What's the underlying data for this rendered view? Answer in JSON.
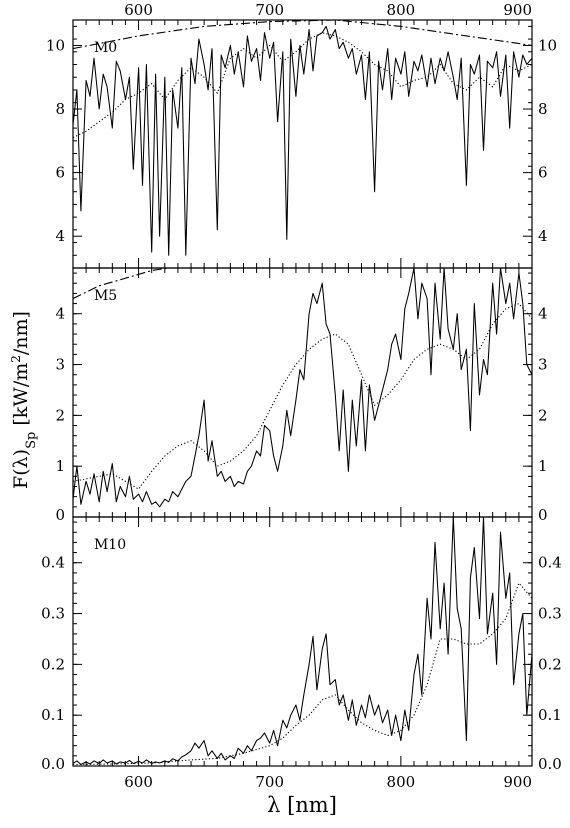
{
  "chart_data": [
    {
      "type": "line",
      "panel": "M0",
      "xlim": [
        550,
        900
      ],
      "ylim": [
        3,
        10.8
      ],
      "x_ticks": [
        600,
        700,
        800,
        900
      ],
      "y_ticks": [
        4,
        6,
        8,
        10
      ],
      "xlabel": "",
      "ylabel": "",
      "annotation": "M0",
      "series": [
        {
          "style": "solid",
          "x": [
            550,
            553,
            556,
            560,
            563,
            566,
            570,
            573,
            576,
            580,
            583,
            586,
            590,
            593,
            596,
            600,
            603,
            606,
            610,
            613,
            616,
            620,
            623,
            626,
            630,
            633,
            636,
            640,
            643,
            646,
            650,
            653,
            656,
            660,
            663,
            666,
            670,
            673,
            676,
            680,
            683,
            686,
            690,
            693,
            696,
            700,
            703,
            706,
            710,
            713,
            716,
            720,
            723,
            726,
            730,
            733,
            736,
            740,
            743,
            746,
            750,
            753,
            756,
            760,
            763,
            766,
            770,
            773,
            776,
            780,
            783,
            786,
            790,
            793,
            796,
            800,
            803,
            806,
            810,
            813,
            816,
            820,
            823,
            826,
            830,
            833,
            836,
            840,
            843,
            846,
            850,
            853,
            856,
            860,
            863,
            866,
            870,
            873,
            876,
            880,
            883,
            886,
            890,
            893,
            896,
            900
          ],
          "y": [
            7.5,
            8.6,
            4.8,
            8.9,
            8.4,
            9.6,
            8.0,
            9.1,
            8.7,
            7.4,
            9.5,
            9.2,
            8.3,
            9.0,
            6.1,
            9.3,
            5.6,
            9.4,
            3.5,
            9.1,
            4.0,
            9.0,
            3.4,
            8.6,
            7.4,
            9.3,
            3.4,
            9.6,
            8.8,
            10.2,
            9.4,
            8.6,
            9.9,
            4.2,
            9.7,
            9.3,
            10.0,
            9.1,
            9.8,
            8.7,
            10.3,
            9.5,
            9.9,
            8.9,
            10.4,
            9.6,
            10.1,
            7.6,
            9.8,
            3.9,
            10.2,
            8.4,
            10.0,
            9.1,
            10.5,
            9.2,
            10.3,
            10.4,
            10.6,
            10.2,
            10.5,
            9.9,
            10.1,
            9.6,
            9.9,
            9.1,
            9.7,
            8.3,
            9.8,
            5.4,
            9.5,
            8.6,
            9.9,
            8.3,
            9.6,
            9.1,
            9.8,
            8.4,
            9.5,
            9.2,
            9.7,
            8.7,
            9.6,
            8.8,
            9.6,
            9.2,
            9.8,
            9.0,
            8.3,
            9.6,
            5.6,
            9.4,
            9.1,
            9.7,
            6.7,
            9.5,
            9.3,
            9.8,
            8.4,
            9.7,
            7.4,
            9.8,
            9.0,
            9.7,
            9.4,
            9.6
          ]
        },
        {
          "style": "dotted",
          "x": [
            550,
            560,
            570,
            580,
            590,
            600,
            610,
            620,
            630,
            640,
            650,
            660,
            670,
            680,
            690,
            700,
            710,
            720,
            730,
            740,
            750,
            760,
            770,
            780,
            790,
            800,
            810,
            820,
            830,
            840,
            850,
            860,
            870,
            880,
            890,
            900
          ],
          "y": [
            7.1,
            7.3,
            7.6,
            7.9,
            8.3,
            8.5,
            8.8,
            8.3,
            8.9,
            9.3,
            9.0,
            8.5,
            9.6,
            9.9,
            9.6,
            10.0,
            9.5,
            9.8,
            10.2,
            10.4,
            10.3,
            10.1,
            9.8,
            9.4,
            9.2,
            8.7,
            8.9,
            9.0,
            9.4,
            8.8,
            8.6,
            9.0,
            8.7,
            9.4,
            9.2,
            9.4
          ]
        },
        {
          "style": "dashdot",
          "x": [
            550,
            600,
            650,
            700,
            750,
            800,
            850,
            900
          ],
          "y": [
            9.9,
            10.3,
            10.6,
            10.75,
            10.8,
            10.6,
            10.3,
            10.0
          ]
        }
      ]
    },
    {
      "type": "line",
      "panel": "M5",
      "xlim": [
        550,
        900
      ],
      "ylim": [
        0,
        4.9
      ],
      "x_ticks": [
        600,
        700,
        800,
        900
      ],
      "y_ticks": [
        0,
        1,
        2,
        3,
        4
      ],
      "xlabel": "",
      "ylabel": "F(λ)_Sp [kW/m²/nm]",
      "annotation": "M5",
      "series": [
        {
          "style": "solid",
          "x": [
            550,
            553,
            556,
            560,
            563,
            566,
            570,
            573,
            576,
            580,
            583,
            586,
            590,
            593,
            596,
            600,
            603,
            606,
            610,
            613,
            616,
            620,
            623,
            626,
            630,
            633,
            636,
            640,
            643,
            646,
            650,
            653,
            656,
            660,
            663,
            666,
            670,
            673,
            676,
            680,
            683,
            686,
            690,
            693,
            696,
            700,
            703,
            706,
            710,
            713,
            716,
            720,
            723,
            726,
            730,
            733,
            736,
            740,
            743,
            746,
            750,
            753,
            756,
            760,
            763,
            766,
            770,
            773,
            776,
            780,
            783,
            786,
            790,
            793,
            796,
            800,
            803,
            806,
            810,
            813,
            816,
            820,
            823,
            826,
            830,
            833,
            836,
            840,
            843,
            846,
            850,
            853,
            856,
            860,
            863,
            866,
            870,
            873,
            876,
            880,
            883,
            886,
            890,
            893,
            896,
            900
          ],
          "y": [
            0.35,
            1.0,
            0.25,
            0.7,
            0.45,
            0.85,
            0.3,
            0.9,
            0.5,
            1.05,
            0.3,
            0.6,
            0.4,
            0.8,
            0.35,
            0.45,
            0.3,
            0.5,
            0.25,
            0.3,
            0.2,
            0.35,
            0.3,
            0.5,
            0.4,
            0.55,
            0.7,
            0.8,
            1.2,
            1.6,
            2.3,
            1.1,
            1.5,
            0.8,
            0.9,
            0.7,
            0.8,
            0.6,
            0.7,
            0.65,
            0.9,
            1.0,
            1.3,
            1.2,
            1.8,
            1.7,
            1.2,
            0.9,
            1.4,
            2.1,
            1.6,
            2.3,
            2.9,
            2.7,
            4.0,
            4.4,
            4.2,
            4.6,
            3.8,
            3.6,
            2.4,
            1.3,
            2.5,
            0.9,
            2.3,
            1.4,
            2.7,
            1.3,
            2.6,
            1.9,
            2.2,
            2.5,
            2.9,
            3.4,
            3.6,
            3.1,
            4.1,
            4.4,
            4.9,
            3.9,
            4.6,
            4.3,
            2.8,
            4.6,
            3.5,
            4.9,
            3.7,
            3.3,
            4.0,
            2.9,
            3.3,
            1.7,
            4.2,
            2.4,
            3.1,
            2.8,
            4.6,
            3.6,
            4.9,
            4.2,
            4.6,
            3.9,
            4.8,
            4.2,
            3.0,
            2.8
          ]
        },
        {
          "style": "dotted",
          "x": [
            550,
            560,
            570,
            580,
            590,
            600,
            610,
            620,
            630,
            640,
            650,
            660,
            670,
            680,
            690,
            700,
            710,
            720,
            730,
            740,
            750,
            760,
            770,
            780,
            790,
            800,
            810,
            820,
            830,
            840,
            850,
            860,
            870,
            880,
            890,
            900
          ],
          "y": [
            0.7,
            0.75,
            0.8,
            0.85,
            0.7,
            0.55,
            0.9,
            1.2,
            1.4,
            1.5,
            1.3,
            1.0,
            1.1,
            1.3,
            1.6,
            2.1,
            2.6,
            3.0,
            3.3,
            3.5,
            3.6,
            3.4,
            2.8,
            2.2,
            2.4,
            2.7,
            3.1,
            3.3,
            3.4,
            3.3,
            3.1,
            3.3,
            3.8,
            4.1,
            4.2,
            3.9
          ]
        },
        {
          "style": "dashdot",
          "x": [
            550,
            570,
            590,
            610,
            622
          ],
          "y": [
            4.3,
            4.55,
            4.7,
            4.85,
            4.9
          ]
        }
      ]
    },
    {
      "type": "line",
      "panel": "M10",
      "xlim": [
        550,
        900
      ],
      "ylim": [
        0,
        0.49
      ],
      "x_ticks": [
        600,
        700,
        800,
        900
      ],
      "y_ticks": [
        0.0,
        0.1,
        0.2,
        0.3,
        0.4
      ],
      "xlabel": "λ [nm]",
      "ylabel": "",
      "annotation": "M10",
      "series": [
        {
          "style": "solid",
          "x": [
            550,
            553,
            556,
            560,
            563,
            566,
            570,
            573,
            576,
            580,
            583,
            586,
            590,
            593,
            596,
            600,
            603,
            606,
            610,
            613,
            616,
            620,
            623,
            626,
            630,
            633,
            636,
            640,
            643,
            646,
            650,
            653,
            656,
            660,
            663,
            666,
            670,
            673,
            676,
            680,
            683,
            686,
            690,
            693,
            696,
            700,
            703,
            706,
            710,
            713,
            716,
            720,
            723,
            726,
            730,
            733,
            736,
            740,
            743,
            746,
            750,
            753,
            756,
            760,
            763,
            766,
            770,
            773,
            776,
            780,
            783,
            786,
            790,
            793,
            796,
            800,
            803,
            806,
            810,
            813,
            816,
            820,
            823,
            826,
            830,
            833,
            836,
            840,
            843,
            846,
            850,
            853,
            856,
            860,
            863,
            866,
            870,
            873,
            876,
            880,
            883,
            886,
            890,
            893,
            896,
            900
          ],
          "y": [
            0.005,
            0.01,
            0.003,
            0.008,
            0.004,
            0.01,
            0.005,
            0.012,
            0.006,
            0.01,
            0.004,
            0.008,
            0.006,
            0.011,
            0.005,
            0.009,
            0.006,
            0.012,
            0.005,
            0.008,
            0.006,
            0.01,
            0.007,
            0.014,
            0.01,
            0.018,
            0.022,
            0.03,
            0.045,
            0.035,
            0.05,
            0.02,
            0.03,
            0.015,
            0.025,
            0.012,
            0.02,
            0.015,
            0.035,
            0.025,
            0.04,
            0.03,
            0.05,
            0.055,
            0.065,
            0.045,
            0.07,
            0.04,
            0.09,
            0.075,
            0.1,
            0.12,
            0.09,
            0.14,
            0.2,
            0.255,
            0.15,
            0.23,
            0.26,
            0.16,
            0.17,
            0.12,
            0.14,
            0.09,
            0.13,
            0.08,
            0.12,
            0.095,
            0.14,
            0.1,
            0.12,
            0.085,
            0.11,
            0.06,
            0.1,
            0.05,
            0.11,
            0.07,
            0.18,
            0.22,
            0.14,
            0.33,
            0.25,
            0.44,
            0.27,
            0.36,
            0.22,
            0.49,
            0.31,
            0.27,
            0.05,
            0.37,
            0.43,
            0.29,
            0.49,
            0.26,
            0.34,
            0.2,
            0.46,
            0.33,
            0.38,
            0.16,
            0.26,
            0.3,
            0.1,
            0.22
          ]
        },
        {
          "style": "dotted",
          "x": [
            550,
            580,
            610,
            640,
            660,
            680,
            700,
            710,
            720,
            730,
            740,
            750,
            760,
            770,
            780,
            790,
            800,
            810,
            820,
            830,
            840,
            850,
            860,
            870,
            880,
            890,
            900
          ],
          "y": [
            0.003,
            0.004,
            0.006,
            0.012,
            0.015,
            0.025,
            0.04,
            0.055,
            0.08,
            0.1,
            0.13,
            0.14,
            0.11,
            0.085,
            0.07,
            0.06,
            0.07,
            0.1,
            0.16,
            0.25,
            0.25,
            0.24,
            0.24,
            0.26,
            0.29,
            0.36,
            0.33
          ]
        }
      ]
    }
  ]
}
